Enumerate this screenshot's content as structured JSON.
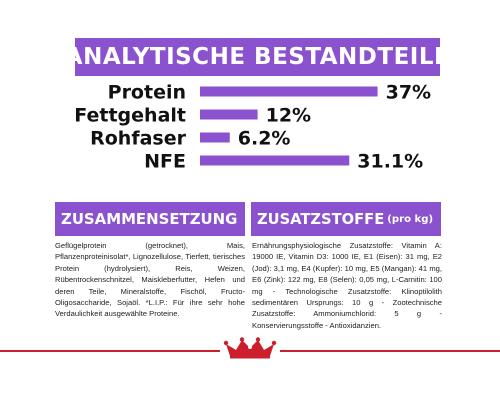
{
  "title": "ANALYTISCHE BESTANDTEILE",
  "chart_data": {
    "type": "bar",
    "orientation": "horizontal",
    "categories": [
      "Protein",
      "Fettgehalt",
      "Rohfaser",
      "NFE"
    ],
    "values": [
      37,
      12,
      6.2,
      31.1
    ],
    "value_labels": [
      "37%",
      "12%",
      "6.2%",
      "31.1%"
    ],
    "unit": "%",
    "xlim": [
      0,
      40
    ],
    "grid": false,
    "legend": "none",
    "bar_color": "#8a52cf"
  },
  "sections": {
    "composition": {
      "header": "ZUSAMMENSETZUNG",
      "text": "Geflügelprotein (getrocknet), Mais, Pflanzenproteinisolat*, Lignozellulose, Tierfett, tierisches Protein (hydrolysiert), Reis, Weizen, Rübentrockenschnitzel, Maiskleberfutter, Hefen und deren Teile, Mineralstoffe, Fischöl, Fructo-Oligosaccharide, Sojaöl. *L.I.P.: Für ihre sehr hohe Verdaulichkeit ausgewählte Proteine."
    },
    "additives": {
      "header": "ZUSATZSTOFFE",
      "header_suffix": "(pro kg)",
      "text": "Ernährungsphysiologische Zusatzstoffe: Vitamin A: 19000 IE, Vitamin D3: 1000 IE, E1 (Eisen): 31 mg, E2 (Jod): 3,1 mg, E4 (Kupfer): 10 mg, E5 (Mangan): 41 mg, E6 (Zink): 122 mg, E8 (Selen): 0,05 mg, L-Carnitin: 100 mg - Technologische Zusatzstoffe: Klinoptilolith sedimentären Ursprungs: 10 g - Zootechnische Zusatzstoffe: Ammoniumchlorid: 5 g - Konservierungsstoffe - Antioxidanzien."
    }
  },
  "footer": {
    "line_color": "#cc1e2c",
    "logo_icon": "crown-icon"
  }
}
